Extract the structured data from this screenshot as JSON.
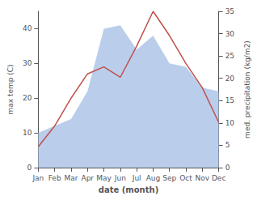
{
  "chart_data": {
    "type": "line",
    "categories": [
      "Jan",
      "Feb",
      "Mar",
      "Apr",
      "May",
      "Jun",
      "Jul",
      "Aug",
      "Sep",
      "Oct",
      "Nov",
      "Dec"
    ],
    "xlabel": "date (month)",
    "ylabel": "max temp (C)",
    "y2label": "med. precipitation (kg/m2)",
    "series": [
      {
        "type": "area",
        "color": "#aec6e8",
        "values": [
          10,
          12,
          14,
          22,
          40,
          41,
          34,
          38,
          30,
          29,
          23,
          22
        ]
      },
      {
        "type": "line",
        "color": "#c0504d",
        "values": [
          6,
          12,
          20,
          27,
          29,
          26,
          35,
          45,
          38,
          30,
          23,
          13
        ]
      }
    ],
    "ylim": [
      0,
      45
    ],
    "yticks": [
      0,
      10,
      20,
      30,
      40
    ],
    "y2lim": [
      0,
      35
    ],
    "y2ticks": [
      0,
      5,
      10,
      15,
      20,
      25,
      30,
      35
    ],
    "grid": false
  }
}
